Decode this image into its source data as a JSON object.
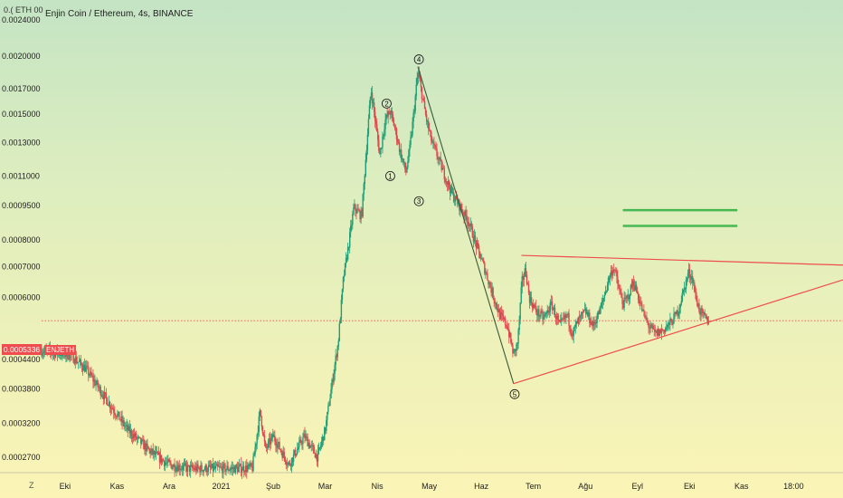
{
  "header": {
    "title": "Enjin Coin / Ethereum, 4s, BINANCE",
    "eth_label": "0.( ETH 00",
    "symbol_tag": "ENJETH",
    "current_price": "0.0005336"
  },
  "footer": {
    "timezone_button": "Z"
  },
  "colors": {
    "up": "#1f9e75",
    "down": "#e0474c",
    "trendline_red": "#ef4d4d",
    "wave_line": "#3a5a3a",
    "resistance_green": "#3cb44b"
  },
  "chart_data": {
    "type": "candlestick",
    "title": "Enjin Coin / Ethereum, 4s, BINANCE",
    "xlabel": "",
    "ylabel": "",
    "y_scale": "log",
    "yticks": [
      "0.0024000",
      "0.0020000",
      "0.0017000",
      "0.0015000",
      "0.0013000",
      "0.0011000",
      "0.0009500",
      "0.0008000",
      "0.0007000",
      "0.0006000",
      "0.0004400",
      "0.0003800",
      "0.0003200",
      "0.0002700"
    ],
    "xticks": [
      "Eki",
      "Kas",
      "Ara",
      "2021",
      "Şub",
      "Mar",
      "Nis",
      "May",
      "Haz",
      "Tem",
      "Ağu",
      "Eyl",
      "Eki",
      "Kas",
      "18:00"
    ],
    "xticks_pos": [
      0,
      1,
      2,
      3,
      4,
      5,
      6,
      7,
      8,
      9,
      10,
      11,
      12,
      13,
      14
    ],
    "x_range": [
      -0.45,
      14.95
    ],
    "ylim": [
      0.00025,
      0.00265
    ],
    "grid": false,
    "price_path": [
      [
        -0.45,
        0.00046
      ],
      [
        0.1,
        0.00045
      ],
      [
        0.4,
        0.00042
      ],
      [
        0.8,
        0.00036
      ],
      [
        1.2,
        0.00031
      ],
      [
        1.6,
        0.00028
      ],
      [
        2.0,
        0.00026
      ],
      [
        2.4,
        0.000255
      ],
      [
        3.2,
        0.000255
      ],
      [
        3.6,
        0.000256
      ],
      [
        3.75,
        0.00034
      ],
      [
        3.85,
        0.00028
      ],
      [
        4.0,
        0.0003
      ],
      [
        4.3,
        0.00026
      ],
      [
        4.6,
        0.0003
      ],
      [
        4.85,
        0.00027
      ],
      [
        5.0,
        0.00031
      ],
      [
        5.1,
        0.00037
      ],
      [
        5.25,
        0.00048
      ],
      [
        5.35,
        0.00066
      ],
      [
        5.45,
        0.00078
      ],
      [
        5.55,
        0.00094
      ],
      [
        5.7,
        0.0009
      ],
      [
        5.8,
        0.0013
      ],
      [
        5.88,
        0.0017
      ],
      [
        5.98,
        0.0014
      ],
      [
        6.05,
        0.00122
      ],
      [
        6.15,
        0.00145
      ],
      [
        6.25,
        0.00152
      ],
      [
        6.35,
        0.00138
      ],
      [
        6.45,
        0.00123
      ],
      [
        6.55,
        0.00112
      ],
      [
        6.62,
        0.00125
      ],
      [
        6.7,
        0.0015
      ],
      [
        6.78,
        0.00185
      ],
      [
        6.86,
        0.00165
      ],
      [
        6.95,
        0.00145
      ],
      [
        7.05,
        0.0013
      ],
      [
        7.15,
        0.00122
      ],
      [
        7.3,
        0.0011
      ],
      [
        7.45,
        0.001
      ],
      [
        7.6,
        0.00094
      ],
      [
        7.75,
        0.00088
      ],
      [
        7.9,
        0.00078
      ],
      [
        8.05,
        0.0007
      ],
      [
        8.2,
        0.00062
      ],
      [
        8.35,
        0.00055
      ],
      [
        8.5,
        0.00052
      ],
      [
        8.62,
        0.00045
      ],
      [
        8.7,
        0.00048
      ],
      [
        8.78,
        0.00065
      ],
      [
        8.85,
        0.00069
      ],
      [
        8.92,
        0.0006
      ],
      [
        9.05,
        0.00056
      ],
      [
        9.2,
        0.00054
      ],
      [
        9.35,
        0.00058
      ],
      [
        9.5,
        0.00052
      ],
      [
        9.65,
        0.00055
      ],
      [
        9.75,
        0.0005
      ],
      [
        9.85,
        0.00053
      ],
      [
        10.0,
        0.00056
      ],
      [
        10.15,
        0.00052
      ],
      [
        10.3,
        0.00057
      ],
      [
        10.45,
        0.00066
      ],
      [
        10.55,
        0.0007
      ],
      [
        10.62,
        0.00064
      ],
      [
        10.72,
        0.00058
      ],
      [
        10.82,
        0.0006
      ],
      [
        10.92,
        0.00065
      ],
      [
        11.02,
        0.0006
      ],
      [
        11.12,
        0.00055
      ],
      [
        11.22,
        0.00052
      ],
      [
        11.35,
        0.0005
      ],
      [
        11.5,
        0.00051
      ],
      [
        11.65,
        0.00053
      ],
      [
        11.78,
        0.00056
      ],
      [
        11.85,
        0.0006
      ],
      [
        11.92,
        0.00064
      ],
      [
        11.98,
        0.00068
      ],
      [
        12.06,
        0.00066
      ],
      [
        12.12,
        0.0006
      ],
      [
        12.2,
        0.00056
      ],
      [
        12.3,
        0.00054
      ],
      [
        12.38,
        0.00053
      ]
    ],
    "annotations": {
      "elliott_wave_line": [
        [
          6.78,
          0.0019
        ],
        [
          8.62,
          0.00039
        ]
      ],
      "triangle_upper": [
        [
          8.77,
          0.00074
        ],
        [
          14.95,
          0.000705
        ]
      ],
      "triangle_lower": [
        [
          8.62,
          0.00039
        ],
        [
          14.95,
          0.000655
        ]
      ],
      "resistance_zones": [
        [
          0.00093,
          0.000925
        ],
        [
          0.00086,
          0.000855
        ]
      ],
      "resistance_x": [
        10.72,
        12.92
      ],
      "wave_labels": [
        {
          "label": "1",
          "x": 6.25,
          "y": 0.0011
        },
        {
          "label": "2",
          "x": 6.18,
          "y": 0.00158
        },
        {
          "label": "3",
          "x": 6.8,
          "y": 0.00097
        },
        {
          "label": "4",
          "x": 6.8,
          "y": 0.00197
        },
        {
          "label": "5",
          "x": 8.64,
          "y": 0.00037
        }
      ],
      "current_price_line": 0.000534
    }
  }
}
